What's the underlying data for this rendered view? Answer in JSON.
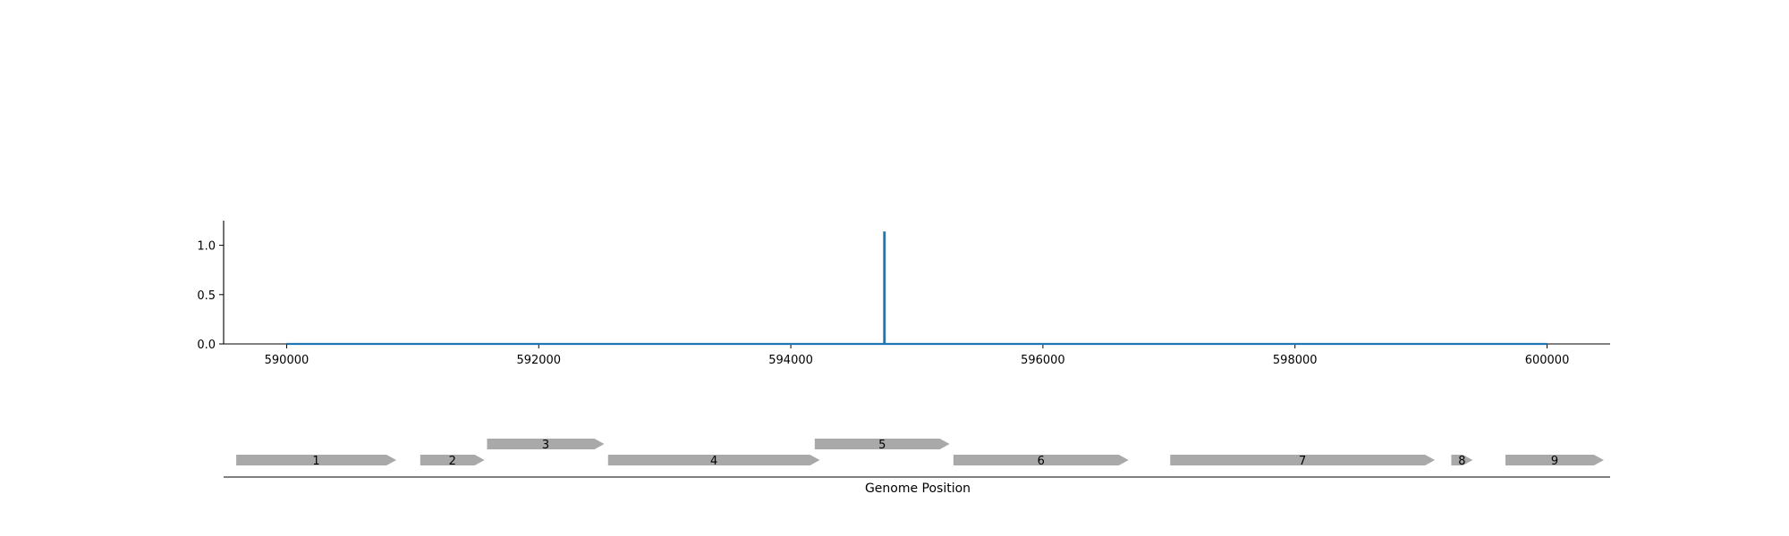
{
  "chart_data": [
    {
      "type": "line",
      "title": "",
      "xlabel": "",
      "ylabel": "",
      "xlim": [
        589500,
        600500
      ],
      "ylim": [
        0,
        1.25
      ],
      "x_ticks": [
        590000,
        592000,
        594000,
        596000,
        598000,
        600000
      ],
      "x_tick_labels": [
        "590000",
        "592000",
        "594000",
        "596000",
        "598000",
        "600000"
      ],
      "y_ticks": [
        0.0,
        0.5,
        1.0
      ],
      "y_tick_labels": [
        "0.0",
        "0.5",
        "1.0"
      ],
      "grid": false,
      "color": "#1f77b4",
      "x": [
        590000,
        594740,
        594740,
        594745,
        594745,
        600000
      ],
      "y": [
        0,
        0,
        1.13,
        1.13,
        0,
        0
      ]
    },
    {
      "type": "gene-track",
      "xlabel": "Genome Position",
      "xlim": [
        589500,
        600500
      ],
      "color": "#a9a9a9",
      "genes": [
        {
          "label": "1",
          "start": 589600,
          "end": 590870,
          "strand": "+",
          "lane": 0
        },
        {
          "label": "2",
          "start": 591060,
          "end": 591570,
          "strand": "+",
          "lane": 0
        },
        {
          "label": "3",
          "start": 591590,
          "end": 592520,
          "strand": "+",
          "lane": 1
        },
        {
          "label": "4",
          "start": 592550,
          "end": 594230,
          "strand": "+",
          "lane": 0
        },
        {
          "label": "5",
          "start": 594190,
          "end": 595260,
          "strand": "+",
          "lane": 1
        },
        {
          "label": "6",
          "start": 595290,
          "end": 596680,
          "strand": "+",
          "lane": 0
        },
        {
          "label": "7",
          "start": 597010,
          "end": 599110,
          "strand": "+",
          "lane": 0
        },
        {
          "label": "8",
          "start": 599240,
          "end": 599410,
          "strand": "+",
          "lane": 0
        },
        {
          "label": "9",
          "start": 599670,
          "end": 600450,
          "strand": "+",
          "lane": 0
        }
      ]
    }
  ]
}
